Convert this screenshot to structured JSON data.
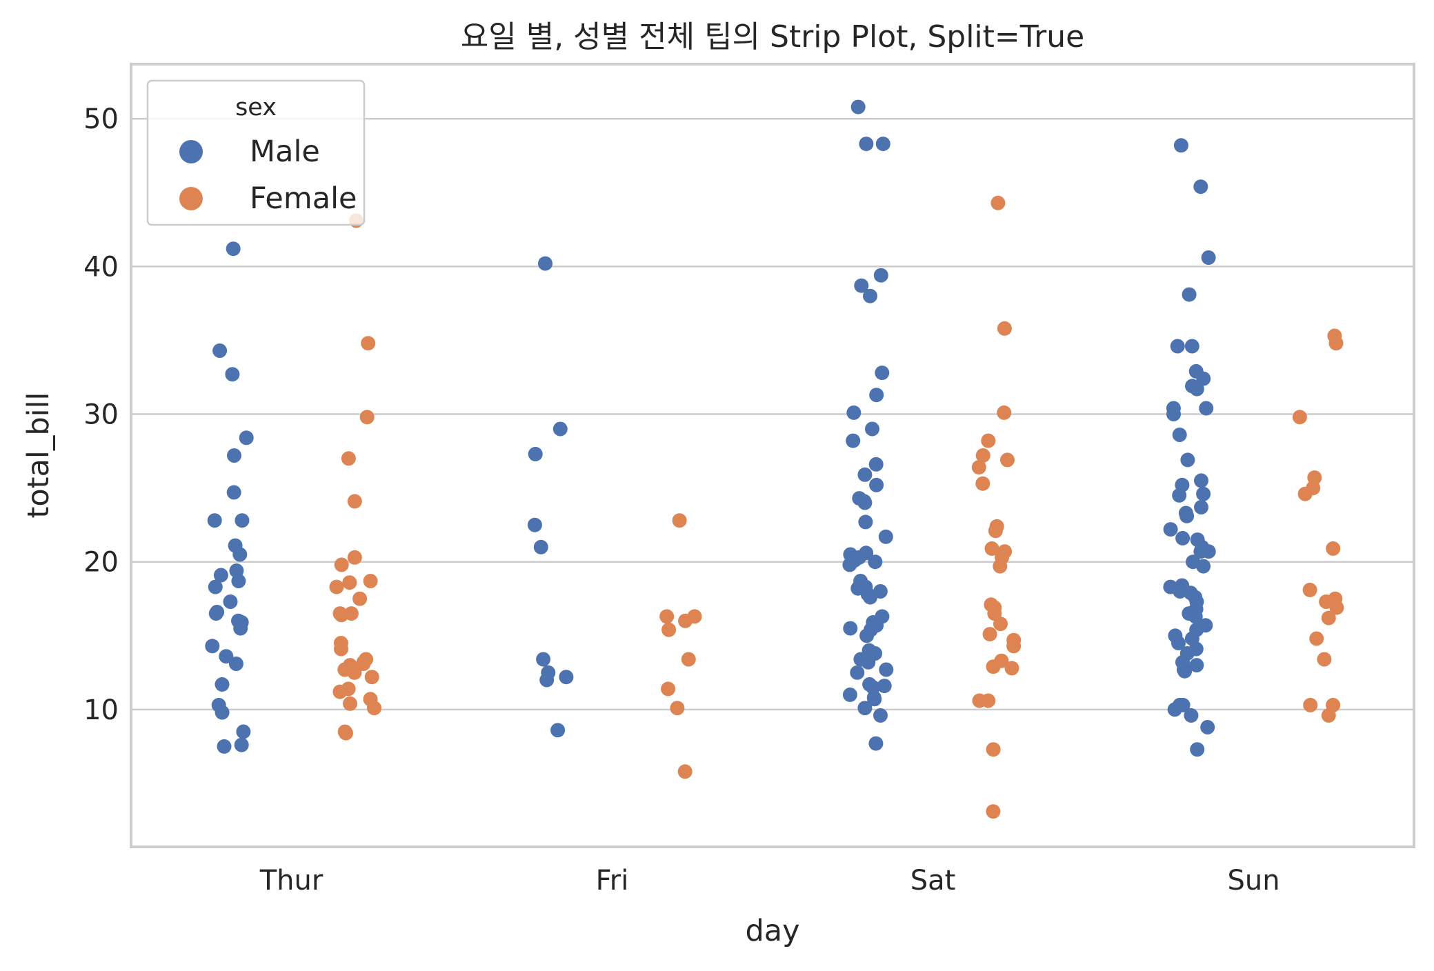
{
  "chart_data": {
    "type": "scatter",
    "subtype": "strip",
    "title": "요일 별, 성별 전체 팁의 Strip Plot, Split=True",
    "xlabel": "day",
    "ylabel": "total_bill",
    "categories": [
      "Thur",
      "Fri",
      "Sat",
      "Sun"
    ],
    "yticks": [
      "10",
      "20",
      "30",
      "40",
      "50"
    ],
    "ylim": [
      0.7,
      53.7
    ],
    "grid": "horizontal",
    "legend": {
      "title": "sex",
      "placement": "top-left",
      "entries": [
        "Male",
        "Female"
      ]
    },
    "series": [
      {
        "name": "Male",
        "color": "#4c72b0",
        "points": [
          {
            "day": "Thur",
            "values": [
              41.2,
              34.3,
              32.7,
              28.4,
              27.2,
              24.7,
              22.8,
              22.8,
              21.1,
              20.5,
              19.4,
              19.1,
              18.7,
              18.3,
              17.3,
              16.6,
              16.5,
              16.0,
              15.9,
              15.5,
              14.3,
              13.6,
              13.1,
              11.7,
              10.3,
              9.8,
              8.5,
              7.6,
              7.5
            ]
          },
          {
            "day": "Fri",
            "values": [
              40.2,
              29.0,
              27.3,
              22.5,
              21.0,
              13.4,
              12.5,
              12.2,
              12.0,
              8.6
            ]
          },
          {
            "day": "Sat",
            "values": [
              50.8,
              48.3,
              48.3,
              39.4,
              38.7,
              38.0,
              32.8,
              31.3,
              30.1,
              29.0,
              28.2,
              26.6,
              25.9,
              25.2,
              24.3,
              24.1,
              24.0,
              22.7,
              21.7,
              20.6,
              20.5,
              20.3,
              20.1,
              20.0,
              19.8,
              18.7,
              18.4,
              18.3,
              18.2,
              18.0,
              17.8,
              17.6,
              16.3,
              15.9,
              15.7,
              15.5,
              15.4,
              15.0,
              14.0,
              13.8,
              13.4,
              13.2,
              12.7,
              12.5,
              11.7,
              11.6,
              11.5,
              11.0,
              10.8,
              10.7,
              10.1,
              9.6,
              7.7
            ]
          },
          {
            "day": "Sun",
            "values": [
              48.2,
              45.4,
              40.6,
              38.1,
              34.6,
              34.6,
              32.9,
              32.4,
              31.9,
              31.7,
              30.4,
              30.4,
              30.0,
              28.6,
              26.9,
              25.5,
              25.2,
              24.6,
              24.5,
              23.7,
              23.3,
              23.1,
              22.2,
              21.6,
              21.5,
              21.0,
              20.7,
              20.7,
              20.0,
              19.7,
              18.4,
              18.3,
              18.0,
              17.9,
              17.6,
              17.3,
              16.8,
              16.5,
              16.3,
              15.7,
              15.4,
              15.0,
              14.8,
              14.5,
              14.1,
              13.8,
              13.2,
              13.0,
              12.7,
              12.6,
              10.3,
              10.3,
              10.0,
              9.6,
              8.8,
              7.3
            ]
          }
        ]
      },
      {
        "name": "Female",
        "color": "#dd8452",
        "points": [
          {
            "day": "Thur",
            "values": [
              43.1,
              34.8,
              29.8,
              27.0,
              24.1,
              20.3,
              19.8,
              18.7,
              18.6,
              18.3,
              17.5,
              16.5,
              16.5,
              16.4,
              14.5,
              14.1,
              13.4,
              13.2,
              13.1,
              13.0,
              12.7,
              12.5,
              12.2,
              11.4,
              11.2,
              10.7,
              10.4,
              10.1,
              8.5,
              8.4
            ]
          },
          {
            "day": "Fri",
            "values": [
              22.8,
              16.3,
              16.3,
              16.0,
              15.4,
              13.4,
              11.4,
              10.1,
              5.8
            ]
          },
          {
            "day": "Sat",
            "values": [
              44.3,
              35.8,
              30.1,
              28.2,
              27.2,
              26.9,
              26.4,
              25.3,
              22.4,
              22.1,
              20.9,
              20.7,
              20.3,
              19.7,
              17.1,
              16.9,
              16.5,
              15.8,
              15.1,
              14.7,
              14.3,
              13.3,
              12.9,
              12.8,
              10.6,
              10.6,
              7.3,
              3.1
            ]
          },
          {
            "day": "Sun",
            "values": [
              35.3,
              34.8,
              29.8,
              25.7,
              25.0,
              24.6,
              20.9,
              18.1,
              17.5,
              17.3,
              16.9,
              16.2,
              14.8,
              13.4,
              10.3,
              10.3,
              9.6
            ]
          }
        ]
      }
    ]
  }
}
